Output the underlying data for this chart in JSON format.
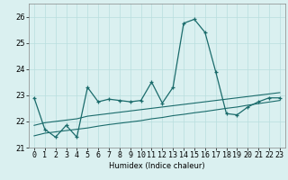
{
  "xlabel": "Humidex (Indice chaleur)",
  "x": [
    0,
    1,
    2,
    3,
    4,
    5,
    6,
    7,
    8,
    9,
    10,
    11,
    12,
    13,
    14,
    15,
    16,
    17,
    18,
    19,
    20,
    21,
    22,
    23
  ],
  "y_main": [
    22.9,
    21.7,
    21.4,
    21.85,
    21.4,
    23.3,
    22.75,
    22.85,
    22.8,
    22.75,
    22.8,
    23.5,
    22.7,
    23.3,
    25.75,
    25.9,
    25.4,
    23.9,
    22.3,
    22.25,
    22.55,
    22.75,
    22.9,
    22.9
  ],
  "y_trend1": [
    21.85,
    21.95,
    22.0,
    22.05,
    22.1,
    22.2,
    22.25,
    22.3,
    22.35,
    22.4,
    22.45,
    22.5,
    22.55,
    22.6,
    22.65,
    22.7,
    22.75,
    22.8,
    22.85,
    22.9,
    22.95,
    23.0,
    23.05,
    23.1
  ],
  "y_trend2": [
    21.45,
    21.55,
    21.6,
    21.65,
    21.7,
    21.75,
    21.82,
    21.88,
    21.93,
    21.98,
    22.03,
    22.1,
    22.15,
    22.22,
    22.27,
    22.33,
    22.38,
    22.44,
    22.5,
    22.55,
    22.62,
    22.68,
    22.74,
    22.8
  ],
  "ylim": [
    21,
    26.5
  ],
  "yticks": [
    21,
    22,
    23,
    24,
    25,
    26
  ],
  "xlim": [
    -0.5,
    23.5
  ],
  "line_color": "#1a6b6b",
  "bg_color": "#daf0f0",
  "grid_color": "#b8dede",
  "label_fontsize": 6,
  "tick_fontsize": 6
}
